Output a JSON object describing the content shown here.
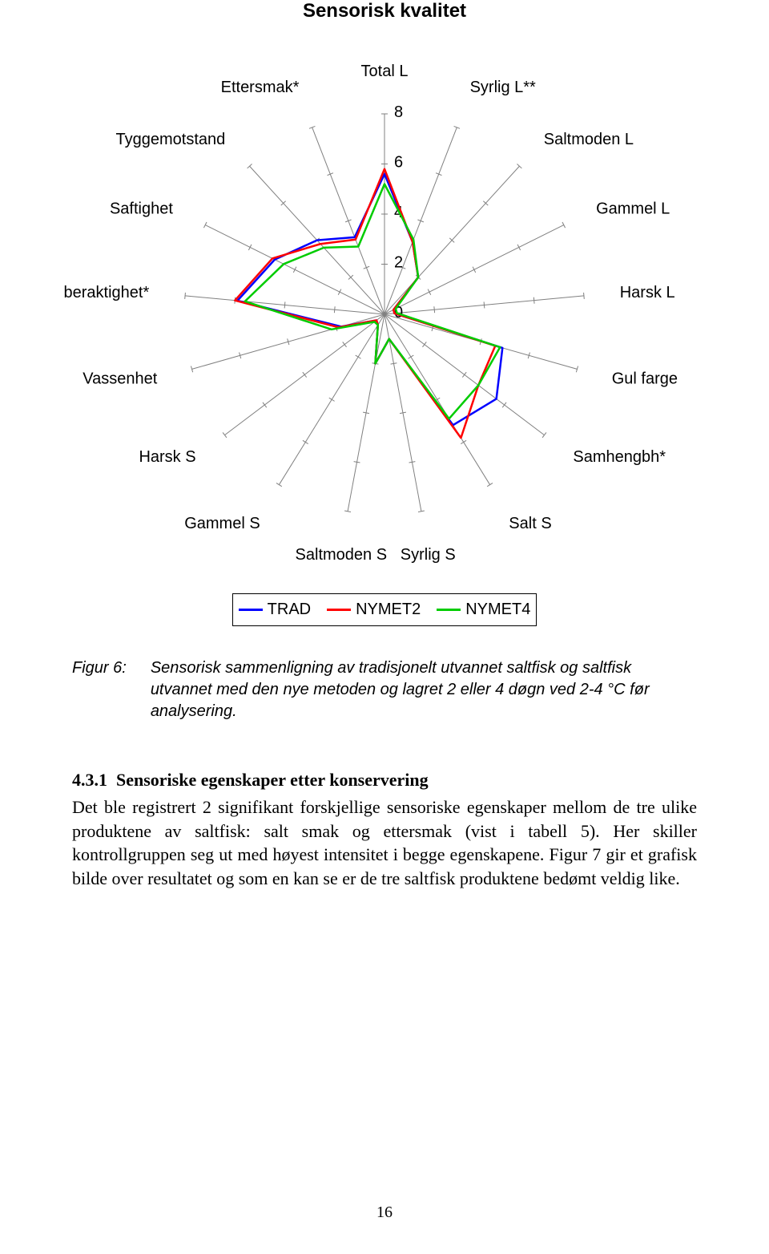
{
  "chart": {
    "type": "radar",
    "title": "Sensorisk kvalitet",
    "title_fontsize": 24,
    "background_color": "#ffffff",
    "axis_color": "#808080",
    "axis_stroke_width": 1,
    "tick_color": "#808080",
    "max_value": 8,
    "ticks": [
      2,
      4,
      6,
      8
    ],
    "tick_labels": [
      "0",
      "2",
      "4",
      "6",
      "8"
    ],
    "label_fontsize": 20,
    "label_color": "#000000",
    "axes": [
      "Total L",
      "Syrlig L**",
      "Saltmoden L",
      "Gammel L",
      "Harsk L",
      "Gul farge",
      "Samhengbh*",
      "Salt S",
      "Syrlig S",
      "Saltmoden S",
      "Gammel S",
      "Harsk S",
      "Vassenhet",
      "Fiberaktighet*",
      "Saftighet",
      "Tyggemotstand",
      "Ettersmak*"
    ],
    "series": [
      {
        "name": "TRAD",
        "color": "#0000ff",
        "stroke_width": 2.5,
        "values": [
          5.6,
          3.1,
          2.0,
          0.4,
          0.4,
          4.9,
          5.6,
          5.2,
          1.0,
          2.0,
          0.5,
          0.4,
          1.8,
          5.9,
          4.9,
          4.0,
          3.3
        ]
      },
      {
        "name": "NYMET2",
        "color": "#ff0000",
        "stroke_width": 2.5,
        "values": [
          5.8,
          3.1,
          2.0,
          0.4,
          0.4,
          4.6,
          4.7,
          5.8,
          1.0,
          2.0,
          0.5,
          0.4,
          1.9,
          6.0,
          5.0,
          3.8,
          3.2
        ]
      },
      {
        "name": "NYMET4",
        "color": "#00cc00",
        "stroke_width": 2.5,
        "values": [
          5.2,
          3.2,
          2.0,
          0.5,
          0.5,
          4.8,
          4.7,
          4.9,
          1.0,
          2.0,
          0.5,
          0.5,
          2.2,
          5.6,
          4.5,
          3.6,
          2.9
        ]
      }
    ]
  },
  "legend": {
    "border_color": "#000000",
    "fontsize": 20
  },
  "caption": {
    "label": "Figur 6:",
    "text": "Sensorisk sammenligning av tradisjonelt utvannet saltfisk og saltfisk utvannet med den nye metoden og lagret 2 eller 4 døgn ved 2-4 °C før analysering."
  },
  "section": {
    "number": "4.3.1",
    "title": "Sensoriske egenskaper etter konservering",
    "body": "Det ble registrert 2 signifikant forskjellige sensoriske egenskaper mellom de tre ulike produktene av saltfisk: salt smak og ettersmak (vist i tabell 5). Her skiller kontrollgruppen seg ut med høyest intensitet i begge egenskapene. Figur 7 gir et grafisk bilde over resultatet og som en kan se er de tre saltfisk produktene bedømt veldig like."
  },
  "page_number": "16"
}
